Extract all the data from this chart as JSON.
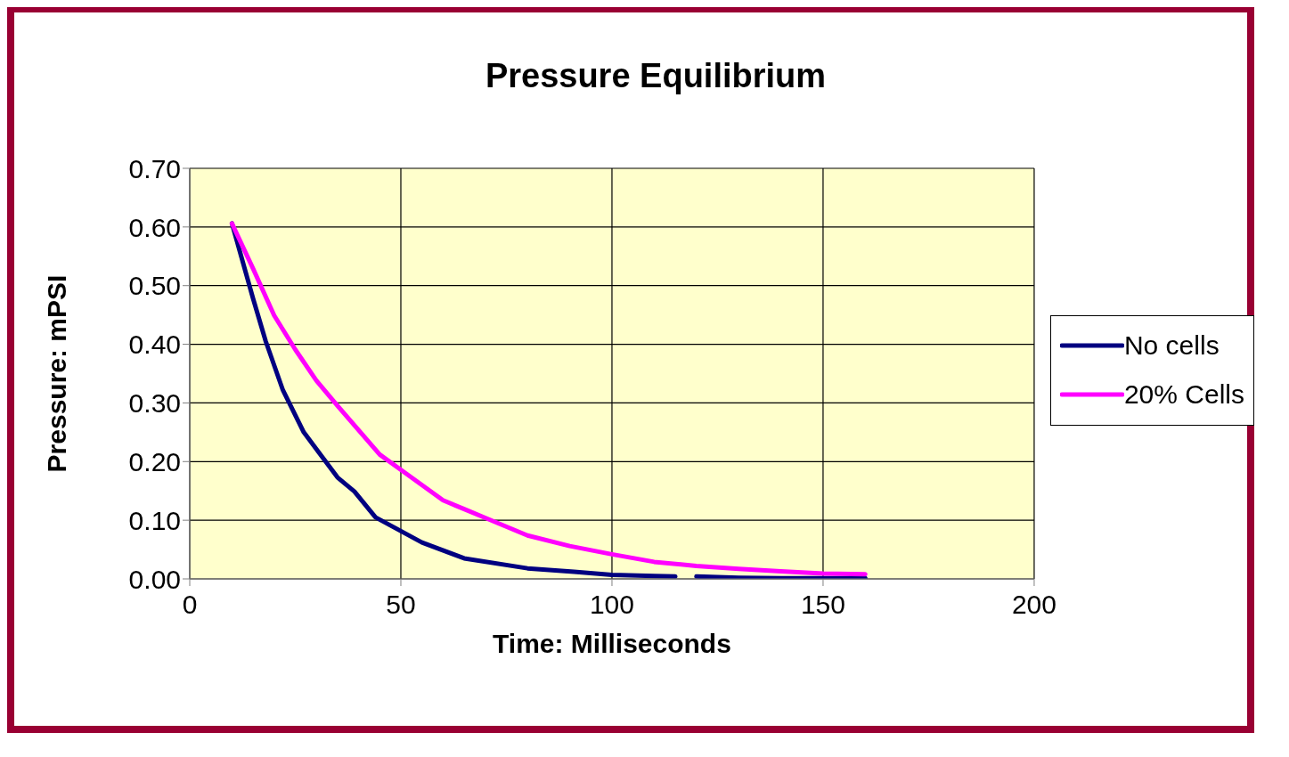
{
  "chart_data": {
    "type": "line",
    "title": "Pressure Equilibrium",
    "xlabel": "Time: Milliseconds",
    "ylabel": "Pressure: mPSI",
    "xlim": [
      0,
      200
    ],
    "xticks": [
      0,
      50,
      100,
      150,
      200
    ],
    "ylim": [
      0,
      0.7
    ],
    "yticks": [
      {
        "value": 0,
        "label": "0.00"
      },
      {
        "value": 0.1,
        "label": "0.10"
      },
      {
        "value": 0.2,
        "label": "0.20"
      },
      {
        "value": 0.3,
        "label": "0.30"
      },
      {
        "value": 0.4,
        "label": "0.40"
      },
      {
        "value": 0.5,
        "label": "0.50"
      },
      {
        "value": 0.6,
        "label": "0.60"
      },
      {
        "value": 0.7,
        "label": "0.70"
      }
    ],
    "grid": true,
    "legend": "right",
    "marker": "none",
    "line_style": "solid",
    "series": [
      {
        "name": "No cells",
        "color": "#000080",
        "x": [
          10,
          15,
          18,
          22,
          27,
          35,
          39,
          44,
          55,
          65,
          80,
          91,
          100,
          110,
          115,
          117.5,
          120,
          130,
          140,
          150,
          160
        ],
        "values": [
          0.606,
          0.478,
          0.405,
          0.323,
          0.25,
          0.173,
          0.149,
          0.105,
          0.062,
          0.035,
          0.018,
          0.012,
          0.007,
          0.005,
          0.004,
          null,
          0.004,
          0.002,
          0.001,
          0.001,
          0.001
        ]
      },
      {
        "name": "20% Cells",
        "color": "#ff00ff",
        "x": [
          10,
          15,
          20,
          25,
          30,
          35,
          45,
          50,
          60,
          65,
          70,
          80,
          90,
          100,
          110,
          120,
          130,
          140,
          150,
          160
        ],
        "values": [
          0.606,
          0.529,
          0.449,
          0.391,
          0.338,
          0.295,
          0.212,
          0.186,
          0.134,
          0.119,
          0.104,
          0.074,
          0.056,
          0.042,
          0.029,
          0.022,
          0.017,
          0.013,
          0.009,
          0.008
        ]
      }
    ]
  }
}
